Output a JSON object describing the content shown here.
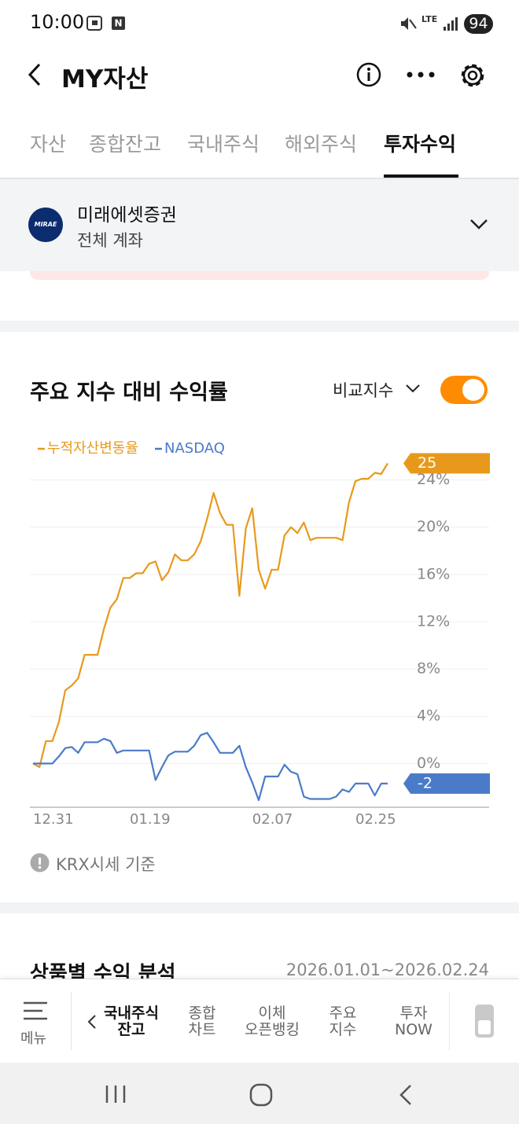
{
  "status_bar": {
    "time": "10:00",
    "network": "LTE",
    "battery": "94"
  },
  "header": {
    "title": "MY자산"
  },
  "tabs": [
    "자산",
    "종합잔고",
    "국내주식",
    "해외주식",
    "투자수익"
  ],
  "active_tab": 4,
  "account": {
    "logo": "MIRAE ASSET",
    "name": "미래에셋증권",
    "scope": "전체 계좌"
  },
  "chart_section": {
    "compare_label": "비교지수",
    "toggle_on": true
  },
  "chart_data": {
    "type": "line",
    "title": "주요 지수 대비 수익률",
    "categories": [
      "12.31",
      null,
      null,
      null,
      null,
      null,
      null,
      null,
      null,
      null,
      null,
      null,
      null,
      null,
      null,
      "01.19",
      null,
      null,
      null,
      null,
      null,
      null,
      null,
      null,
      null,
      null,
      null,
      null,
      null,
      null,
      null,
      null,
      null,
      null,
      "02.07",
      null,
      null,
      null,
      null,
      null,
      null,
      null,
      null,
      null,
      null,
      null,
      null,
      null,
      null,
      null,
      "02.25",
      null,
      null,
      null,
      null,
      null
    ],
    "series": [
      {
        "name": "누적자산변동율",
        "color": "#e8991c",
        "end_label": "25",
        "values": [
          0,
          -0.3,
          1.9,
          1.9,
          3.5,
          6.2,
          6.6,
          7.2,
          9.2,
          9.2,
          9.2,
          11.4,
          13.2,
          13.9,
          15.7,
          15.7,
          16.1,
          16.1,
          16.9,
          17.1,
          15.5,
          16.2,
          17.7,
          17.2,
          17.2,
          17.7,
          18.8,
          20.7,
          22.9,
          21.2,
          20.2,
          20.2,
          14.2,
          19.9,
          21.6,
          16.4,
          14.8,
          16.4,
          16.4,
          19.3,
          20.0,
          19.5,
          20.4,
          18.9,
          19.1,
          19.1,
          19.1,
          19.1,
          18.9,
          22.1,
          23.9,
          24.1,
          24.1,
          24.6,
          24.5,
          25.4
        ]
      },
      {
        "name": "NASDAQ",
        "color": "#4a7bc8",
        "end_label": "-2",
        "values": [
          0,
          0,
          0,
          0,
          0.6,
          1.3,
          1.4,
          0.9,
          1.8,
          1.8,
          1.8,
          2.1,
          1.9,
          0.9,
          1.1,
          1.1,
          1.1,
          1.1,
          1.1,
          -1.4,
          -0.3,
          0.7,
          1.0,
          1.0,
          1.0,
          1.5,
          2.4,
          2.6,
          1.8,
          0.9,
          0.9,
          0.9,
          1.5,
          -0.3,
          -1.6,
          -3.1,
          -1.1,
          -1.1,
          -1.1,
          -0.1,
          -0.7,
          -0.9,
          -2.8,
          -3.0,
          -3.0,
          -3.0,
          -3.0,
          -2.8,
          -2.2,
          -2.4,
          -1.7,
          -1.7,
          -1.7,
          -2.7,
          -1.7,
          -1.7
        ]
      }
    ],
    "ylim": [
      -3.7,
      25.7
    ],
    "yticks": [
      {
        "value": 0,
        "label": "0%"
      },
      {
        "value": 4,
        "label": "4%"
      },
      {
        "value": 8,
        "label": "8%"
      },
      {
        "value": 12,
        "label": "12%"
      },
      {
        "value": 16,
        "label": "16%"
      },
      {
        "value": 20,
        "label": "20%"
      },
      {
        "value": 24,
        "label": "24%"
      }
    ],
    "grid": true
  },
  "note": "KRX시세 기준",
  "product_section": {
    "title": "상품별 수익 분석",
    "period": "2026.01.01~2026.02.24"
  },
  "bottom_nav": {
    "menu": "메뉴",
    "active_item": 0,
    "items": [
      [
        "국내주식",
        "잔고"
      ],
      [
        "종합",
        "차트"
      ],
      [
        "이체",
        "오픈뱅킹"
      ],
      [
        "주요",
        "지수"
      ],
      [
        "투자",
        "NOW"
      ]
    ]
  }
}
